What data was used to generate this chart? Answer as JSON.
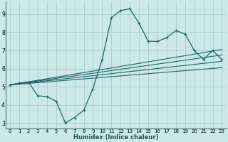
{
  "xlabel": "Humidex (Indice chaleur)",
  "bg_color": "#cce8e8",
  "grid_color": "#aacccc",
  "line_color": "#1a6666",
  "xlim": [
    -0.5,
    23.5
  ],
  "ylim": [
    2.7,
    9.7
  ],
  "yticks": [
    3,
    4,
    5,
    6,
    7,
    8,
    9
  ],
  "xticks": [
    0,
    1,
    2,
    3,
    4,
    5,
    6,
    7,
    8,
    9,
    10,
    11,
    12,
    13,
    14,
    15,
    16,
    17,
    18,
    19,
    20,
    21,
    22,
    23
  ],
  "main_x": [
    0,
    1,
    2,
    3,
    4,
    5,
    6,
    7,
    8,
    9,
    10,
    11,
    12,
    13,
    14,
    15,
    16,
    17,
    18,
    19,
    20,
    21,
    22,
    23
  ],
  "main_y": [
    5.1,
    5.2,
    5.25,
    4.5,
    4.45,
    4.2,
    3.0,
    3.3,
    3.7,
    4.9,
    6.5,
    8.8,
    9.2,
    9.3,
    8.5,
    7.5,
    7.5,
    7.7,
    8.1,
    7.9,
    7.0,
    6.5,
    7.0,
    6.5
  ],
  "line1_y": [
    5.1,
    7.05
  ],
  "line2_y": [
    5.1,
    6.75
  ],
  "line3_y": [
    5.1,
    6.4
  ],
  "line4_y": [
    5.1,
    6.05
  ]
}
